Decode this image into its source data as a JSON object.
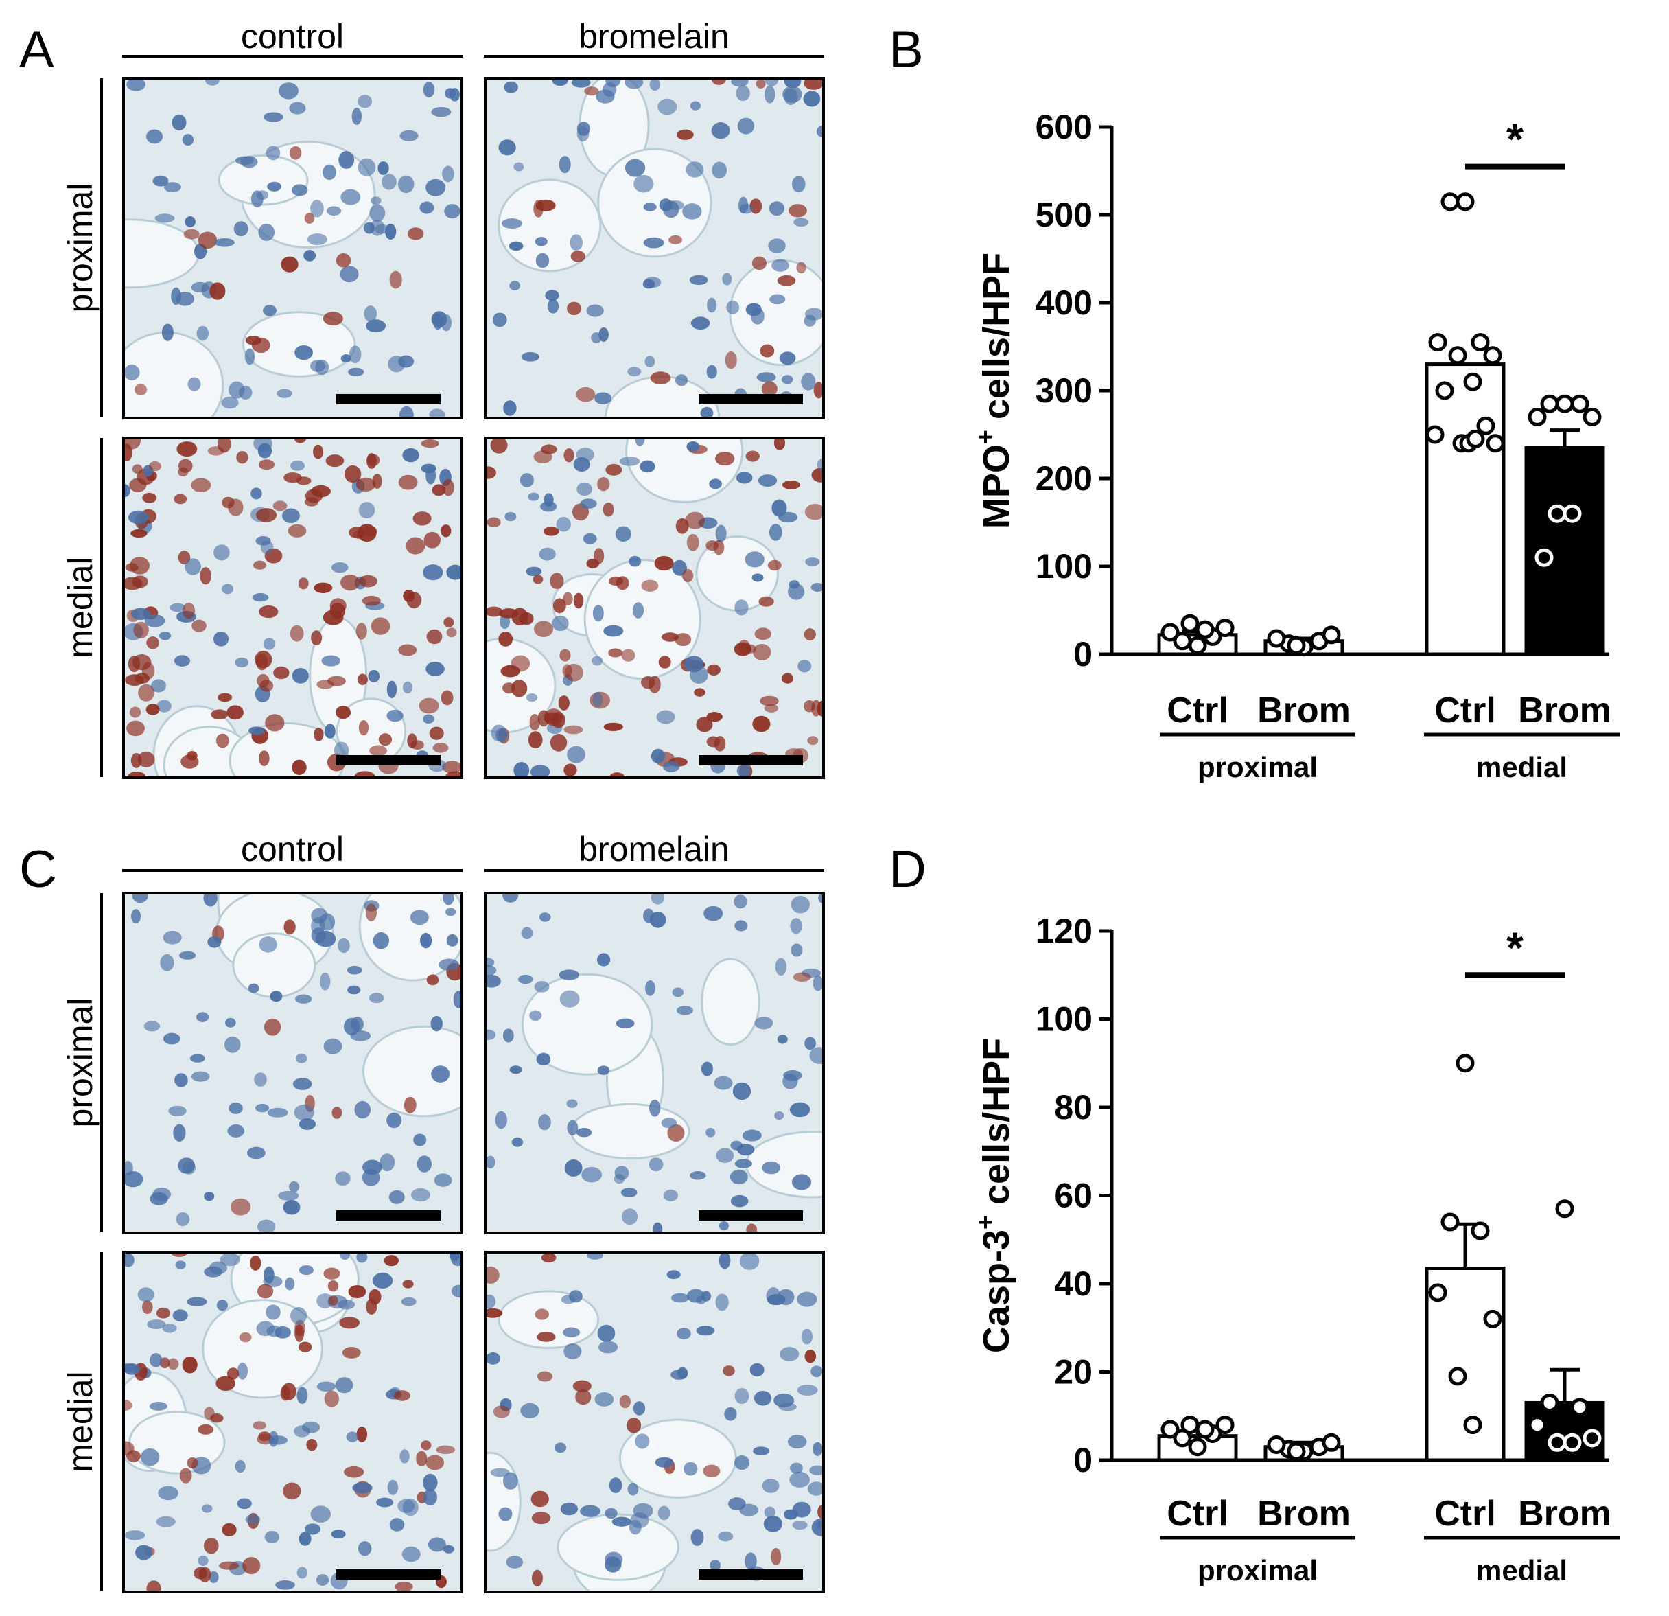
{
  "panel_labels": {
    "a": "A",
    "b": "B",
    "c": "C",
    "d": "D"
  },
  "micrographs": {
    "col_headers": [
      "control",
      "bromelain"
    ],
    "row_labels": [
      "proximal",
      "medial"
    ],
    "colors": {
      "background": "#dfe9ee",
      "nucleus": "#4a6fa5",
      "stain": "#8e2f22",
      "vessel": "#f3f7f9"
    }
  },
  "chart_data": [
    {
      "type": "bar",
      "ylabel": "MPO",
      "ylabel_sup": "+",
      "ylabel_rest": " cells/HPF",
      "ylim": [
        0,
        600
      ],
      "yticks": [
        0,
        100,
        200,
        300,
        400,
        500,
        600
      ],
      "categories": [
        "Ctrl",
        "Brom",
        "Ctrl",
        "Brom"
      ],
      "groups": [
        "proximal",
        "medial"
      ],
      "bars": [
        {
          "mean": 22,
          "err": 4,
          "fill": "#ffffff",
          "points": [
            10,
            15,
            20,
            25,
            30,
            35,
            28
          ]
        },
        {
          "mean": 15,
          "err": 3,
          "fill": "#ffffff",
          "points": [
            8,
            12,
            15,
            18,
            22,
            10
          ]
        },
        {
          "mean": 330,
          "err": 0,
          "fill": "#ffffff",
          "points": [
            515,
            515,
            355,
            355,
            340,
            340,
            310,
            300,
            260,
            250,
            240,
            240,
            240,
            245
          ]
        },
        {
          "mean": 235,
          "err": 20,
          "fill": "#000000",
          "points": [
            285,
            285,
            285,
            270,
            270,
            160,
            160,
            110
          ]
        }
      ],
      "significance": {
        "symbol": "*",
        "between": [
          2,
          3
        ],
        "y": 555
      }
    },
    {
      "type": "bar",
      "ylabel": "Casp-3",
      "ylabel_sup": "+",
      "ylabel_rest": " cells/HPF",
      "ylim": [
        0,
        120
      ],
      "yticks": [
        0,
        20,
        40,
        60,
        80,
        100,
        120
      ],
      "categories": [
        "Ctrl",
        "Brom",
        "Ctrl",
        "Brom"
      ],
      "groups": [
        "proximal",
        "medial"
      ],
      "bars": [
        {
          "mean": 5.5,
          "err": 1.5,
          "fill": "#ffffff",
          "points": [
            3,
            5,
            6,
            7,
            8,
            8,
            7
          ]
        },
        {
          "mean": 3,
          "err": 1,
          "fill": "#ffffff",
          "points": [
            2,
            2.5,
            3,
            3.5,
            4,
            2
          ]
        },
        {
          "mean": 43.5,
          "err": 10,
          "fill": "#ffffff",
          "points": [
            90,
            54,
            52,
            38,
            32,
            19,
            8
          ]
        },
        {
          "mean": 13,
          "err": 7.5,
          "fill": "#000000",
          "points": [
            57,
            13,
            12,
            8,
            5,
            4,
            4
          ]
        }
      ],
      "significance": {
        "symbol": "*",
        "between": [
          2,
          3
        ],
        "y": 110
      }
    }
  ]
}
